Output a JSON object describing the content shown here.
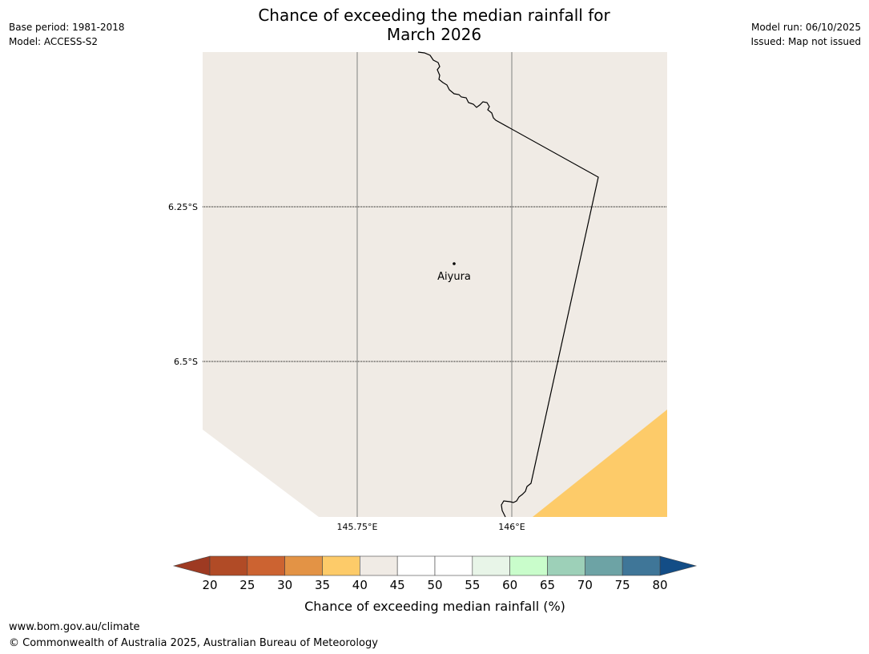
{
  "header": {
    "title_line1": "Chance of exceeding the median rainfall for",
    "title_line2": "March 2026",
    "base_period": "Base period: 1981-2018",
    "model": "Model: ACCESS-S2",
    "model_run": "Model run: 06/10/2025",
    "issued": "Issued: Map not issued"
  },
  "map": {
    "latitude_labels": [
      "6.25°S",
      "6.5°S"
    ],
    "longitude_labels": [
      "145.75°E",
      "146°E"
    ],
    "place_label": "Aiyura",
    "colors": {
      "land_40_45": "#f0ebe5",
      "band_35_40": "#fdcb69",
      "coastline": "#000000",
      "gridline": "#808080"
    }
  },
  "colorbar": {
    "label": "Chance of exceeding median rainfall (%)",
    "ticks": [
      "20",
      "25",
      "30",
      "35",
      "40",
      "45",
      "50",
      "55",
      "60",
      "65",
      "70",
      "75",
      "80"
    ],
    "under_color": "#9e3a22",
    "over_color": "#134d86",
    "band_colors": [
      "#b14b26",
      "#cc6331",
      "#e39345",
      "#fdcb69",
      "#f0ebe5",
      "#ffffff",
      "#ffffff",
      "#e8f5e8",
      "#c9fdcb",
      "#9dd0b8",
      "#6da3a5",
      "#3f7698"
    ]
  },
  "footer": {
    "url": "www.bom.gov.au/climate",
    "copyright": "© Commonwealth of Australia 2025, Australian Bureau of Meteorology"
  }
}
